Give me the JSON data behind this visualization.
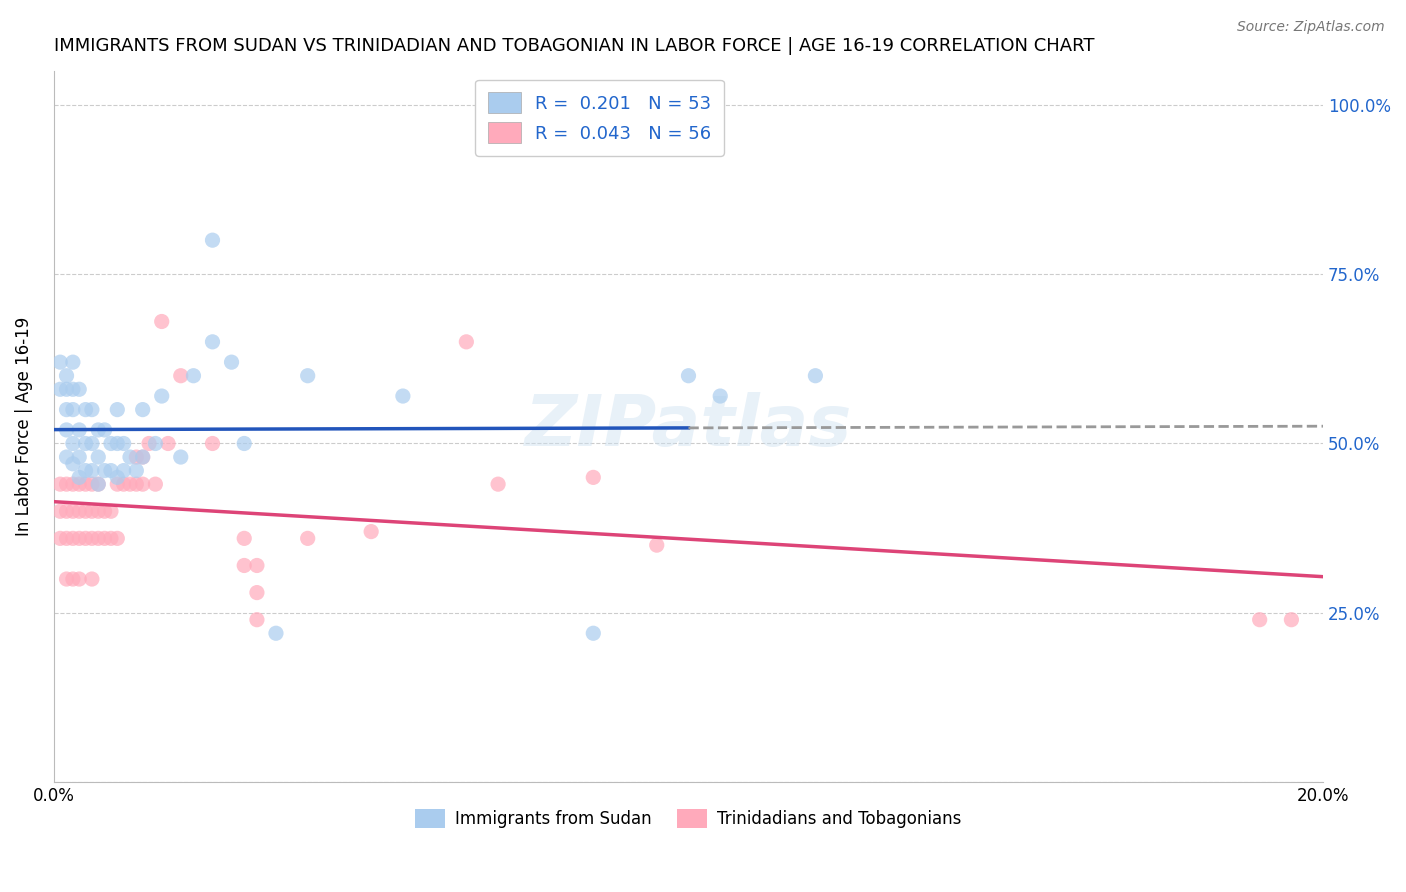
{
  "title": "IMMIGRANTS FROM SUDAN VS TRINIDADIAN AND TOBAGONIAN IN LABOR FORCE | AGE 16-19 CORRELATION CHART",
  "source": "Source: ZipAtlas.com",
  "ylabel_label": "In Labor Force | Age 16-19",
  "xmin": 0.0,
  "xmax": 0.2,
  "ymin": 0.0,
  "ymax": 1.05,
  "yticks": [
    0.0,
    0.25,
    0.5,
    0.75,
    1.0
  ],
  "ytick_labels": [
    "",
    "25.0%",
    "50.0%",
    "75.0%",
    "100.0%"
  ],
  "xticks": [
    0.0,
    0.04,
    0.08,
    0.12,
    0.16,
    0.2
  ],
  "xtick_labels": [
    "0.0%",
    "",
    "",
    "",
    "",
    "20.0%"
  ],
  "legend_r1": "R =  0.201",
  "legend_n1": "N = 53",
  "legend_r2": "R =  0.043",
  "legend_n2": "N = 56",
  "color_blue": "#aaccee",
  "color_pink": "#ffaabb",
  "color_blue_line": "#2255bb",
  "color_pink_line": "#dd4477",
  "color_axis_right": "#2266cc",
  "watermark": "ZIPatlas",
  "sudan_x": [
    0.001,
    0.001,
    0.002,
    0.002,
    0.002,
    0.002,
    0.002,
    0.003,
    0.003,
    0.003,
    0.003,
    0.003,
    0.004,
    0.004,
    0.004,
    0.004,
    0.005,
    0.005,
    0.005,
    0.006,
    0.006,
    0.006,
    0.007,
    0.007,
    0.007,
    0.008,
    0.008,
    0.009,
    0.009,
    0.01,
    0.01,
    0.01,
    0.011,
    0.011,
    0.012,
    0.013,
    0.014,
    0.014,
    0.016,
    0.017,
    0.02,
    0.022,
    0.025,
    0.025,
    0.028,
    0.03,
    0.035,
    0.04,
    0.055,
    0.085,
    0.1,
    0.105,
    0.12
  ],
  "sudan_y": [
    0.62,
    0.58,
    0.6,
    0.58,
    0.55,
    0.52,
    0.48,
    0.62,
    0.58,
    0.55,
    0.5,
    0.47,
    0.58,
    0.52,
    0.48,
    0.45,
    0.55,
    0.5,
    0.46,
    0.55,
    0.5,
    0.46,
    0.52,
    0.48,
    0.44,
    0.52,
    0.46,
    0.5,
    0.46,
    0.55,
    0.5,
    0.45,
    0.5,
    0.46,
    0.48,
    0.46,
    0.55,
    0.48,
    0.5,
    0.57,
    0.48,
    0.6,
    0.65,
    0.8,
    0.62,
    0.5,
    0.22,
    0.6,
    0.57,
    0.22,
    0.6,
    0.57,
    0.6
  ],
  "tnt_x": [
    0.001,
    0.001,
    0.001,
    0.002,
    0.002,
    0.002,
    0.002,
    0.003,
    0.003,
    0.003,
    0.003,
    0.004,
    0.004,
    0.004,
    0.004,
    0.005,
    0.005,
    0.005,
    0.006,
    0.006,
    0.006,
    0.006,
    0.007,
    0.007,
    0.007,
    0.008,
    0.008,
    0.009,
    0.009,
    0.01,
    0.01,
    0.011,
    0.012,
    0.013,
    0.013,
    0.014,
    0.014,
    0.015,
    0.016,
    0.017,
    0.018,
    0.02,
    0.025,
    0.03,
    0.03,
    0.032,
    0.032,
    0.032,
    0.04,
    0.05,
    0.065,
    0.07,
    0.085,
    0.095,
    0.19,
    0.195
  ],
  "tnt_y": [
    0.44,
    0.4,
    0.36,
    0.44,
    0.4,
    0.36,
    0.3,
    0.44,
    0.4,
    0.36,
    0.3,
    0.44,
    0.4,
    0.36,
    0.3,
    0.44,
    0.4,
    0.36,
    0.44,
    0.4,
    0.36,
    0.3,
    0.44,
    0.4,
    0.36,
    0.4,
    0.36,
    0.4,
    0.36,
    0.44,
    0.36,
    0.44,
    0.44,
    0.48,
    0.44,
    0.48,
    0.44,
    0.5,
    0.44,
    0.68,
    0.5,
    0.6,
    0.5,
    0.36,
    0.32,
    0.32,
    0.28,
    0.24,
    0.36,
    0.37,
    0.65,
    0.44,
    0.45,
    0.35,
    0.24,
    0.24
  ],
  "bg_color": "#ffffff",
  "grid_color": "#cccccc"
}
